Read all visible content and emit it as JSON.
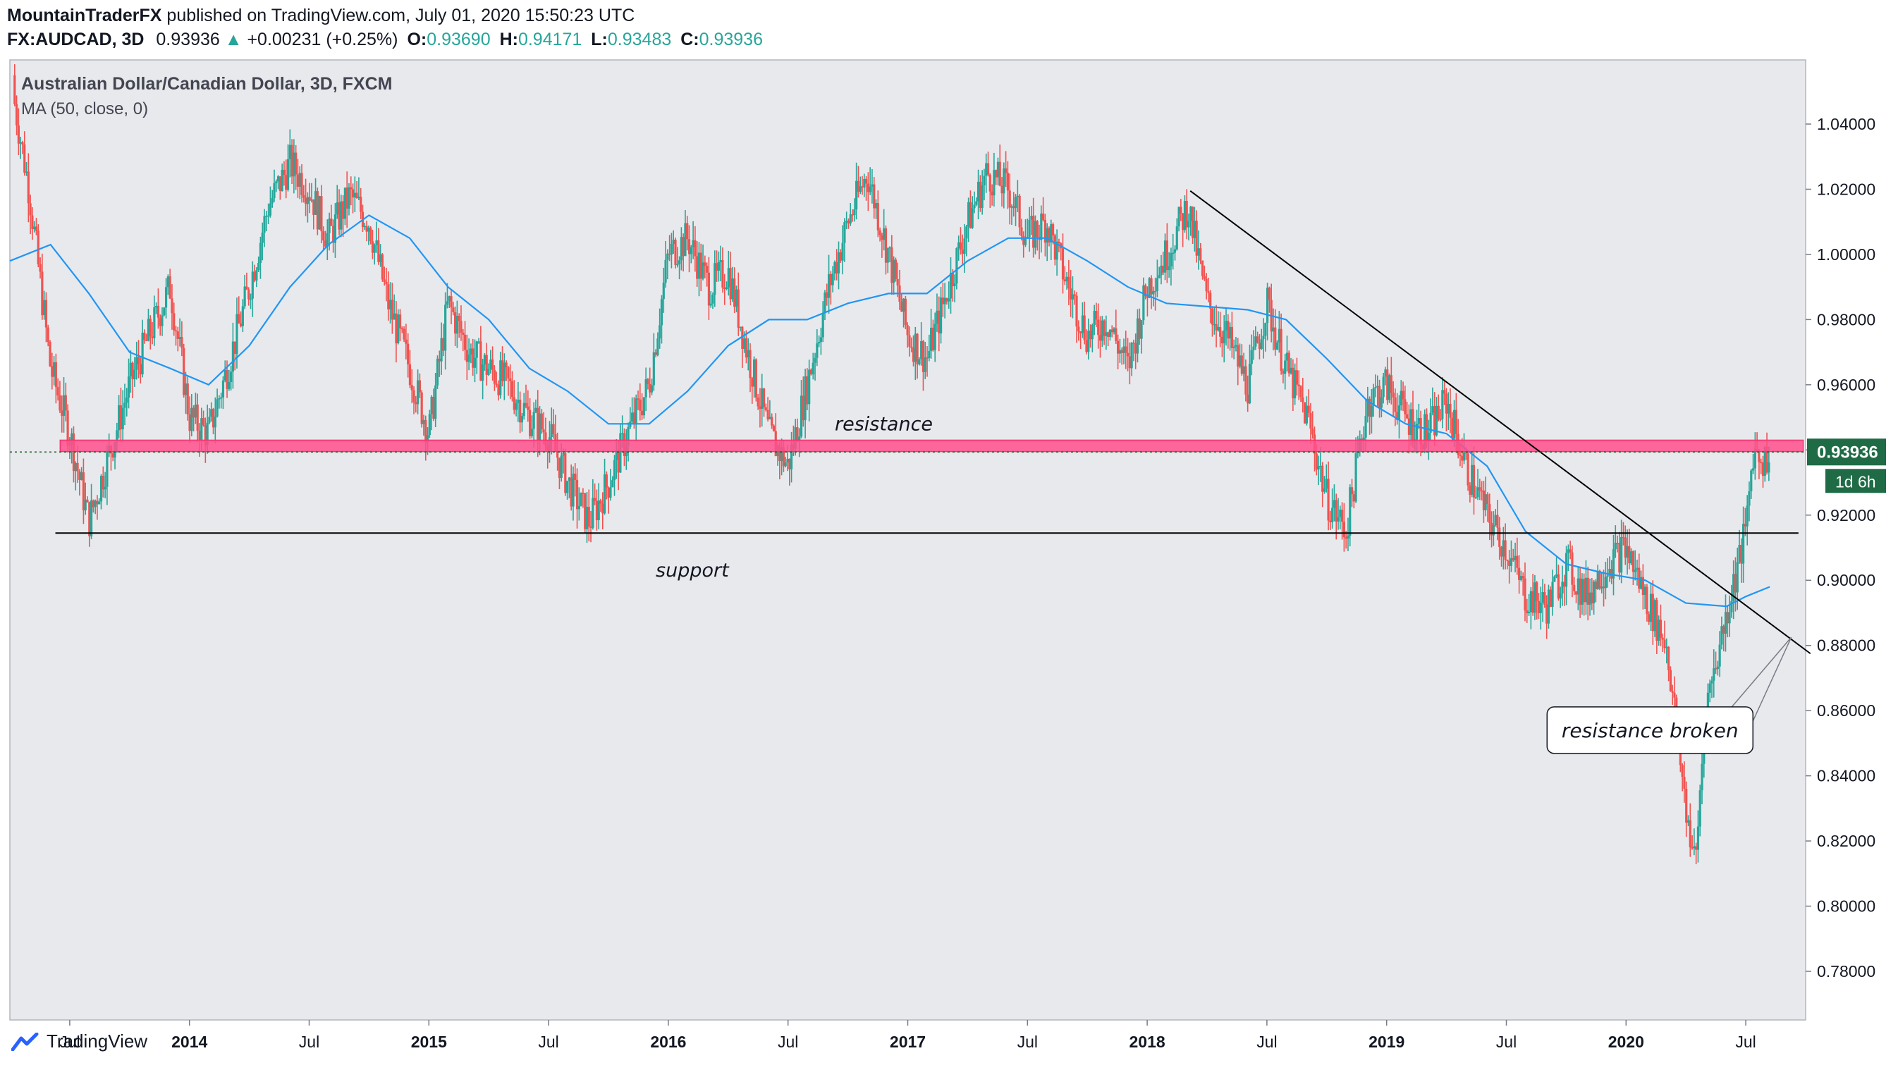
{
  "header": {
    "author": "MountainTraderFX",
    "published": "published on TradingView.com, July 01, 2020 15:50:23 UTC",
    "symbol": "FX:AUDCAD, 3D",
    "last": "0.93936",
    "change": "+0.00231 (+0.25%)",
    "o_label": "O:",
    "o_val": "0.93690",
    "h_label": "H:",
    "h_val": "0.94171",
    "l_label": "L:",
    "l_val": "0.93483",
    "c_label": "C:",
    "c_val": "0.93936"
  },
  "footer": {
    "brand": "TradingView"
  },
  "colors": {
    "up": "#26a69a",
    "down": "#ef5350",
    "ma": "#2196f3",
    "zone": "#ff4f8b",
    "background": "#e8e9ed"
  },
  "chart_data": {
    "type": "candlestick",
    "title": "Australian Dollar/Canadian Dollar, 3D, FXCM",
    "indicator": "MA (50, close, 0)",
    "ylim": [
      0.775,
      1.0585
    ],
    "xlim": [
      2013.25,
      2020.75
    ],
    "y_ticks": [
      "1.04000",
      "1.02000",
      "1.00000",
      "0.98000",
      "0.96000",
      "0.94000",
      "0.92000",
      "0.90000",
      "0.88000",
      "0.86000",
      "0.84000",
      "0.82000",
      "0.80000",
      "0.78000"
    ],
    "x_ticks": [
      {
        "label": "Jul",
        "x": 2013.5
      },
      {
        "label": "2014",
        "x": 2014.0
      },
      {
        "label": "Jul",
        "x": 2014.5
      },
      {
        "label": "2015",
        "x": 2015.0
      },
      {
        "label": "Jul",
        "x": 2015.5
      },
      {
        "label": "2016",
        "x": 2016.0
      },
      {
        "label": "Jul",
        "x": 2016.5
      },
      {
        "label": "2017",
        "x": 2017.0
      },
      {
        "label": "Jul",
        "x": 2017.5
      },
      {
        "label": "2018",
        "x": 2018.0
      },
      {
        "label": "Jul",
        "x": 2018.5
      },
      {
        "label": "2019",
        "x": 2019.0
      },
      {
        "label": "Jul",
        "x": 2019.5
      },
      {
        "label": "2020",
        "x": 2020.0
      },
      {
        "label": "Jul",
        "x": 2020.5
      }
    ],
    "price_label": "0.93936",
    "countdown_label": "1d 6h",
    "close_path": [
      [
        2013.25,
        1.055
      ],
      [
        2013.33,
        1.02
      ],
      [
        2013.42,
        0.965
      ],
      [
        2013.5,
        0.945
      ],
      [
        2013.58,
        0.918
      ],
      [
        2013.67,
        0.94
      ],
      [
        2013.75,
        0.96
      ],
      [
        2013.83,
        0.975
      ],
      [
        2013.92,
        0.99
      ],
      [
        2014.0,
        0.95
      ],
      [
        2014.08,
        0.945
      ],
      [
        2014.17,
        0.968
      ],
      [
        2014.25,
        0.99
      ],
      [
        2014.33,
        1.015
      ],
      [
        2014.42,
        1.028
      ],
      [
        2014.5,
        1.02
      ],
      [
        2014.58,
        1.005
      ],
      [
        2014.67,
        1.018
      ],
      [
        2014.75,
        1.01
      ],
      [
        2014.83,
        0.985
      ],
      [
        2014.92,
        0.965
      ],
      [
        2015.0,
        0.945
      ],
      [
        2015.08,
        0.985
      ],
      [
        2015.17,
        0.97
      ],
      [
        2015.25,
        0.965
      ],
      [
        2015.33,
        0.96
      ],
      [
        2015.42,
        0.95
      ],
      [
        2015.5,
        0.945
      ],
      [
        2015.58,
        0.93
      ],
      [
        2015.67,
        0.918
      ],
      [
        2015.75,
        0.93
      ],
      [
        2015.83,
        0.945
      ],
      [
        2015.92,
        0.96
      ],
      [
        2016.0,
        1.0
      ],
      [
        2016.08,
        1.005
      ],
      [
        2016.17,
        0.99
      ],
      [
        2016.25,
        0.995
      ],
      [
        2016.33,
        0.97
      ],
      [
        2016.42,
        0.945
      ],
      [
        2016.5,
        0.935
      ],
      [
        2016.58,
        0.96
      ],
      [
        2016.67,
        0.99
      ],
      [
        2016.75,
        1.01
      ],
      [
        2016.83,
        1.025
      ],
      [
        2016.92,
        1.0
      ],
      [
        2017.0,
        0.975
      ],
      [
        2017.08,
        0.968
      ],
      [
        2017.17,
        0.99
      ],
      [
        2017.25,
        1.01
      ],
      [
        2017.33,
        1.025
      ],
      [
        2017.42,
        1.02
      ],
      [
        2017.5,
        1.005
      ],
      [
        2017.58,
        1.01
      ],
      [
        2017.67,
        0.99
      ],
      [
        2017.75,
        0.975
      ],
      [
        2017.83,
        0.98
      ],
      [
        2017.92,
        0.965
      ],
      [
        2018.0,
        0.99
      ],
      [
        2018.08,
        1.0
      ],
      [
        2018.17,
        1.015
      ],
      [
        2018.25,
        0.985
      ],
      [
        2018.33,
        0.975
      ],
      [
        2018.42,
        0.96
      ],
      [
        2018.5,
        0.985
      ],
      [
        2018.58,
        0.965
      ],
      [
        2018.67,
        0.95
      ],
      [
        2018.75,
        0.925
      ],
      [
        2018.83,
        0.915
      ],
      [
        2018.92,
        0.955
      ],
      [
        2019.0,
        0.96
      ],
      [
        2019.08,
        0.95
      ],
      [
        2019.17,
        0.945
      ],
      [
        2019.25,
        0.955
      ],
      [
        2019.33,
        0.935
      ],
      [
        2019.42,
        0.92
      ],
      [
        2019.5,
        0.91
      ],
      [
        2019.58,
        0.895
      ],
      [
        2019.67,
        0.892
      ],
      [
        2019.75,
        0.905
      ],
      [
        2019.83,
        0.895
      ],
      [
        2019.92,
        0.905
      ],
      [
        2020.0,
        0.91
      ],
      [
        2020.08,
        0.895
      ],
      [
        2020.17,
        0.88
      ],
      [
        2020.25,
        0.83
      ],
      [
        2020.29,
        0.812
      ],
      [
        2020.33,
        0.86
      ],
      [
        2020.42,
        0.89
      ],
      [
        2020.5,
        0.915
      ],
      [
        2020.53,
        0.94
      ],
      [
        2020.58,
        0.937
      ],
      [
        2020.6,
        0.939
      ]
    ],
    "ma_path": [
      [
        2013.25,
        0.998
      ],
      [
        2013.42,
        1.003
      ],
      [
        2013.58,
        0.988
      ],
      [
        2013.75,
        0.97
      ],
      [
        2013.92,
        0.965
      ],
      [
        2014.08,
        0.96
      ],
      [
        2014.25,
        0.972
      ],
      [
        2014.42,
        0.99
      ],
      [
        2014.58,
        1.003
      ],
      [
        2014.75,
        1.012
      ],
      [
        2014.92,
        1.005
      ],
      [
        2015.08,
        0.99
      ],
      [
        2015.25,
        0.98
      ],
      [
        2015.42,
        0.965
      ],
      [
        2015.58,
        0.958
      ],
      [
        2015.75,
        0.948
      ],
      [
        2015.92,
        0.948
      ],
      [
        2016.08,
        0.958
      ],
      [
        2016.25,
        0.972
      ],
      [
        2016.42,
        0.98
      ],
      [
        2016.58,
        0.98
      ],
      [
        2016.75,
        0.985
      ],
      [
        2016.92,
        0.988
      ],
      [
        2017.08,
        0.988
      ],
      [
        2017.25,
        0.998
      ],
      [
        2017.42,
        1.005
      ],
      [
        2017.58,
        1.005
      ],
      [
        2017.75,
        0.998
      ],
      [
        2017.92,
        0.99
      ],
      [
        2018.08,
        0.985
      ],
      [
        2018.25,
        0.984
      ],
      [
        2018.42,
        0.983
      ],
      [
        2018.58,
        0.98
      ],
      [
        2018.75,
        0.968
      ],
      [
        2018.92,
        0.955
      ],
      [
        2019.08,
        0.948
      ],
      [
        2019.25,
        0.945
      ],
      [
        2019.42,
        0.935
      ],
      [
        2019.58,
        0.915
      ],
      [
        2019.75,
        0.905
      ],
      [
        2019.92,
        0.902
      ],
      [
        2020.08,
        0.9
      ],
      [
        2020.25,
        0.893
      ],
      [
        2020.42,
        0.892
      ],
      [
        2020.5,
        0.895
      ],
      [
        2020.6,
        0.898
      ]
    ],
    "support": {
      "label": "support",
      "y": 0.9145,
      "x_from": 2013.44,
      "x_to": 2020.72
    },
    "resistance_zone": {
      "label": "resistance",
      "y_low": 0.9395,
      "y_high": 0.943,
      "x_from": 2013.46,
      "x_to": 2020.74
    },
    "trendline": {
      "from": [
        2018.18,
        1.0195
      ],
      "to": [
        2020.77,
        0.8775
      ]
    },
    "annotation": {
      "text": "resistance broken",
      "anchor": [
        2020.1,
        0.854
      ]
    }
  }
}
